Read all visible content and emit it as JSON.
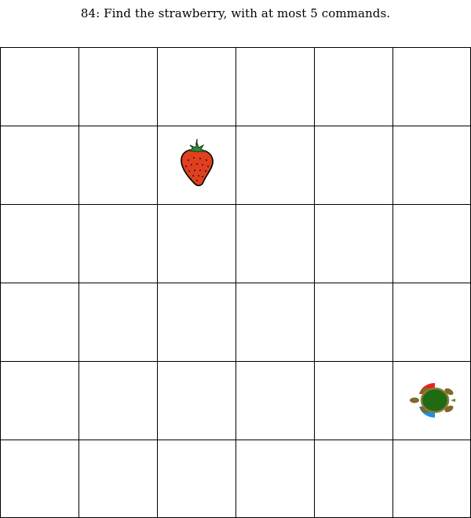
{
  "puzzle": {
    "title": "84: Find the strawberry, with at most 5 commands."
  },
  "board": {
    "rows": 6,
    "cols": 6,
    "strawberry": {
      "row": 1,
      "col": 2,
      "icon": "strawberry-icon"
    },
    "turtle": {
      "row": 4,
      "col": 5,
      "heading": "west",
      "icon": "turtle-icon"
    }
  },
  "colors": {
    "grid_line": "#000000",
    "strawberry_body": "#e0401f",
    "strawberry_leaf": "#2e8b3a",
    "turtle_shell": "#1f6a12",
    "turtle_skin": "#7d6a2a",
    "turtle_left_marker": "#e8241c",
    "turtle_right_marker": "#1e90e0"
  }
}
